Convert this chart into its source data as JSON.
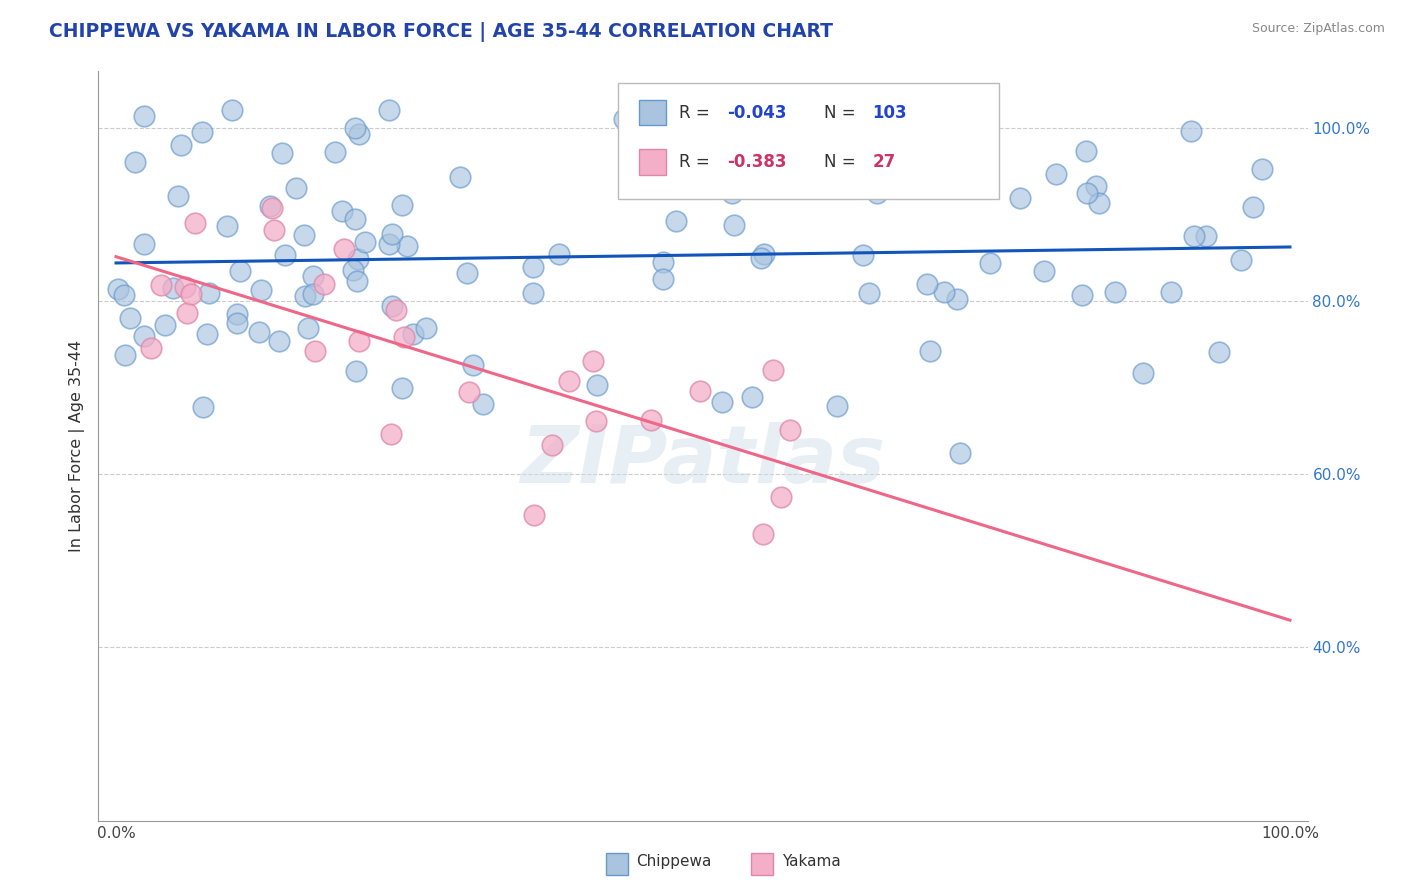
{
  "title": "CHIPPEWA VS YAKAMA IN LABOR FORCE | AGE 35-44 CORRELATION CHART",
  "source": "Source: ZipAtlas.com",
  "ylabel": "In Labor Force | Age 35-44",
  "R_chippewa": -0.043,
  "N_chippewa": 103,
  "R_yakama": -0.383,
  "N_yakama": 27,
  "chippewa_fill": "#aac4e0",
  "chippewa_edge": "#6699cc",
  "yakama_fill": "#f4aec8",
  "yakama_edge": "#dd88aa",
  "trend_chippewa_color": "#1155bb",
  "trend_yakama_color": "#ee6688",
  "legend_chip_fill": "#aac4e0",
  "legend_yak_fill": "#f4aec8",
  "watermark": "ZIPatlas",
  "seed": 99
}
